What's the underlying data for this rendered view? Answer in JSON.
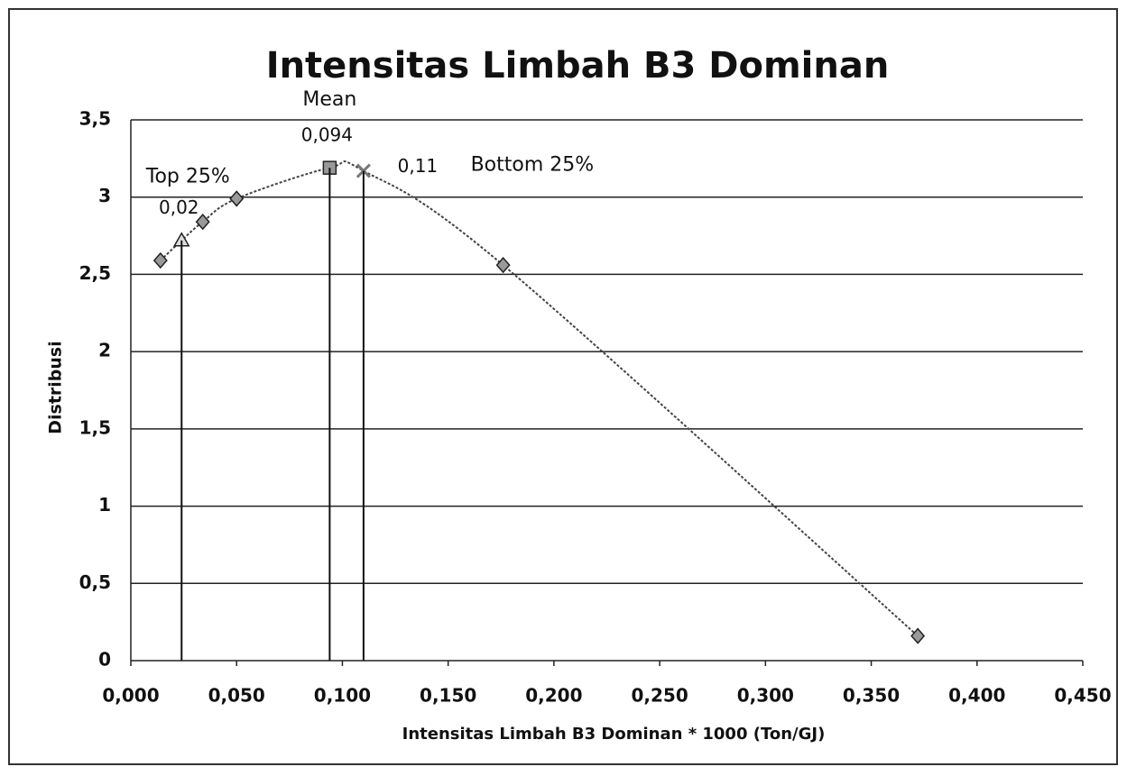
{
  "chart_data": {
    "type": "scatter",
    "title": "Intensitas Limbah B3 Dominan",
    "x_label": "Intensitas Limbah B3 Dominan * 1000 (Ton/GJ)",
    "y_label": "Distribusi",
    "series": [
      {
        "color": "#999999",
        "line_color": "#444444",
        "smooth": true,
        "x": [
          0.014,
          0.024,
          0.034,
          0.05,
          0.094,
          0.11,
          0.176,
          0.372
        ],
        "values": [
          2.59,
          2.72,
          2.84,
          2.99,
          3.19,
          3.17,
          2.56,
          0.16
        ],
        "markers": [
          "diamond",
          "triangle",
          "diamond",
          "diamond",
          "square",
          "x",
          "diamond",
          "diamond"
        ],
        "value_labels": [
          null,
          "0,02",
          null,
          null,
          "0,094",
          "0,11",
          null,
          null
        ]
      }
    ],
    "reference_lines": [
      {
        "x": 0.024,
        "label": "Top 25%"
      },
      {
        "x": 0.094,
        "label": "Mean"
      },
      {
        "x": 0.11,
        "label": "Bottom 25%"
      }
    ],
    "xlim": [
      0,
      0.45
    ],
    "xticks": [
      {
        "value": 0,
        "label": "0,000"
      },
      {
        "value": 0.05,
        "label": "0,050"
      },
      {
        "value": 0.1,
        "label": "0,100"
      },
      {
        "value": 0.15,
        "label": "0,150"
      },
      {
        "value": 0.2,
        "label": "0,200"
      },
      {
        "value": 0.25,
        "label": "0,250"
      },
      {
        "value": 0.3,
        "label": "0,300"
      },
      {
        "value": 0.35,
        "label": "0,350"
      },
      {
        "value": 0.4,
        "label": "0,400"
      },
      {
        "value": 0.45,
        "label": "0,450"
      }
    ],
    "ylim": [
      0,
      3.5
    ],
    "yticks": [
      0,
      {
        "value": 0.5,
        "label": "0,5"
      },
      1,
      {
        "value": 1.5,
        "label": "1,5"
      },
      2,
      {
        "value": 2.5,
        "label": "2,5"
      },
      3,
      {
        "value": 3.5,
        "label": "3,5"
      }
    ],
    "grid": true
  }
}
